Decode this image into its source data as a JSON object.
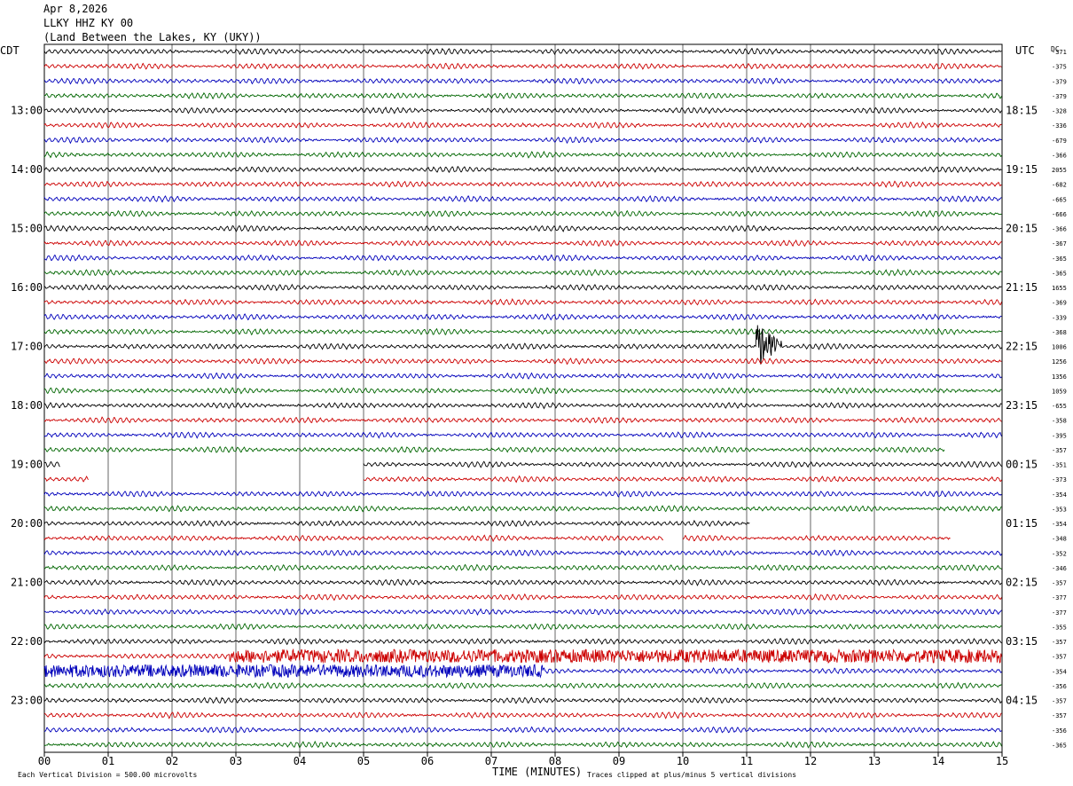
{
  "header": {
    "date": "Apr 8,2026",
    "station": "LLKY HHZ KY 00",
    "location": "(Land Between the Lakes, KY (UKY))"
  },
  "axis_labels": {
    "left_tz": "CDT",
    "right_tz": "UTC",
    "dc_label": "DC",
    "xlabel": "TIME (MINUTES)",
    "footer_left": "Each Vertical Division =  500.00 microvolts",
    "footer_right": "Traces clipped at plus/minus 5 vertical divisions"
  },
  "colors": {
    "trace_cycle": [
      "#000000",
      "#cc0000",
      "#0000bb",
      "#006600"
    ],
    "grid": "#000000"
  },
  "chart_data": {
    "type": "line",
    "title": "LLKY HHZ KY 00",
    "xlabel": "TIME (MINUTES)",
    "xlim": [
      0,
      15
    ],
    "x_ticks": [
      "00",
      "01",
      "02",
      "03",
      "04",
      "05",
      "06",
      "07",
      "08",
      "09",
      "10",
      "11",
      "12",
      "13",
      "14",
      "15"
    ],
    "rows_per_hour": 4,
    "minutes_per_row": 15,
    "left_time_labels": [
      {
        "row": 0,
        "label": ""
      },
      {
        "row": 4,
        "label": "13:00"
      },
      {
        "row": 8,
        "label": "14:00"
      },
      {
        "row": 12,
        "label": "15:00"
      },
      {
        "row": 16,
        "label": "16:00"
      },
      {
        "row": 20,
        "label": "17:00"
      },
      {
        "row": 24,
        "label": "18:00"
      },
      {
        "row": 28,
        "label": "19:00"
      },
      {
        "row": 32,
        "label": "20:00"
      },
      {
        "row": 36,
        "label": "21:00"
      },
      {
        "row": 40,
        "label": "22:00"
      },
      {
        "row": 44,
        "label": "23:00"
      }
    ],
    "right_time_labels": [
      {
        "row": 4,
        "label": "18:15"
      },
      {
        "row": 8,
        "label": "19:15"
      },
      {
        "row": 12,
        "label": "20:15"
      },
      {
        "row": 16,
        "label": "21:15"
      },
      {
        "row": 20,
        "label": "22:15"
      },
      {
        "row": 24,
        "label": "23:15"
      },
      {
        "row": 28,
        "label": "00:15"
      },
      {
        "row": 32,
        "label": "01:15"
      },
      {
        "row": 36,
        "label": "02:15"
      },
      {
        "row": 40,
        "label": "03:15"
      },
      {
        "row": 44,
        "label": "04:15"
      }
    ],
    "dc_offsets": [
      "-371",
      "-375",
      "-379",
      "-379",
      "-328",
      "-336",
      "-679",
      "-366",
      "2055",
      "-682",
      "-665",
      "-666",
      "-366",
      "-367",
      "-365",
      "-365",
      "1655",
      "-369",
      "-339",
      "-368",
      "1006",
      "1256",
      "1356",
      "1059",
      "-655",
      "-358",
      "-395",
      "-357",
      "-351",
      "-373",
      "-354",
      "-353",
      "-354",
      "-348",
      "-352",
      "-346",
      "-357",
      "-377",
      "-377",
      "-355",
      "-357",
      "-357",
      "-354",
      "-356",
      "-357",
      "-357",
      "-356",
      "-365"
    ],
    "events": [
      {
        "row": 20,
        "start_min": 11.15,
        "end_min": 11.55,
        "amplitude": 2.4,
        "label": ""
      }
    ],
    "segments": [
      {
        "row": 28,
        "ranges": [
          [
            0,
            0.25
          ],
          [
            5.0,
            15
          ]
        ]
      },
      {
        "row": 29,
        "ranges": [
          [
            0,
            0.7
          ],
          [
            5.0,
            15
          ]
        ]
      },
      {
        "row": 30,
        "ranges": [
          [
            0,
            15
          ]
        ]
      },
      {
        "row": 31,
        "ranges": [
          [
            0,
            15
          ]
        ]
      },
      {
        "row": 32,
        "ranges": [
          [
            0,
            11.05
          ]
        ]
      },
      {
        "row": 33,
        "ranges": [
          [
            0,
            9.7
          ],
          [
            10.0,
            14.2
          ]
        ]
      },
      {
        "row": 27,
        "ranges": [
          [
            0,
            14.1
          ]
        ]
      }
    ],
    "noisy_segments": [
      {
        "row": 41,
        "start_min": 2.9,
        "end_min": 15,
        "amplitude": 0.9
      },
      {
        "row": 42,
        "start_min": 0,
        "end_min": 7.8,
        "amplitude": 0.85
      }
    ]
  }
}
